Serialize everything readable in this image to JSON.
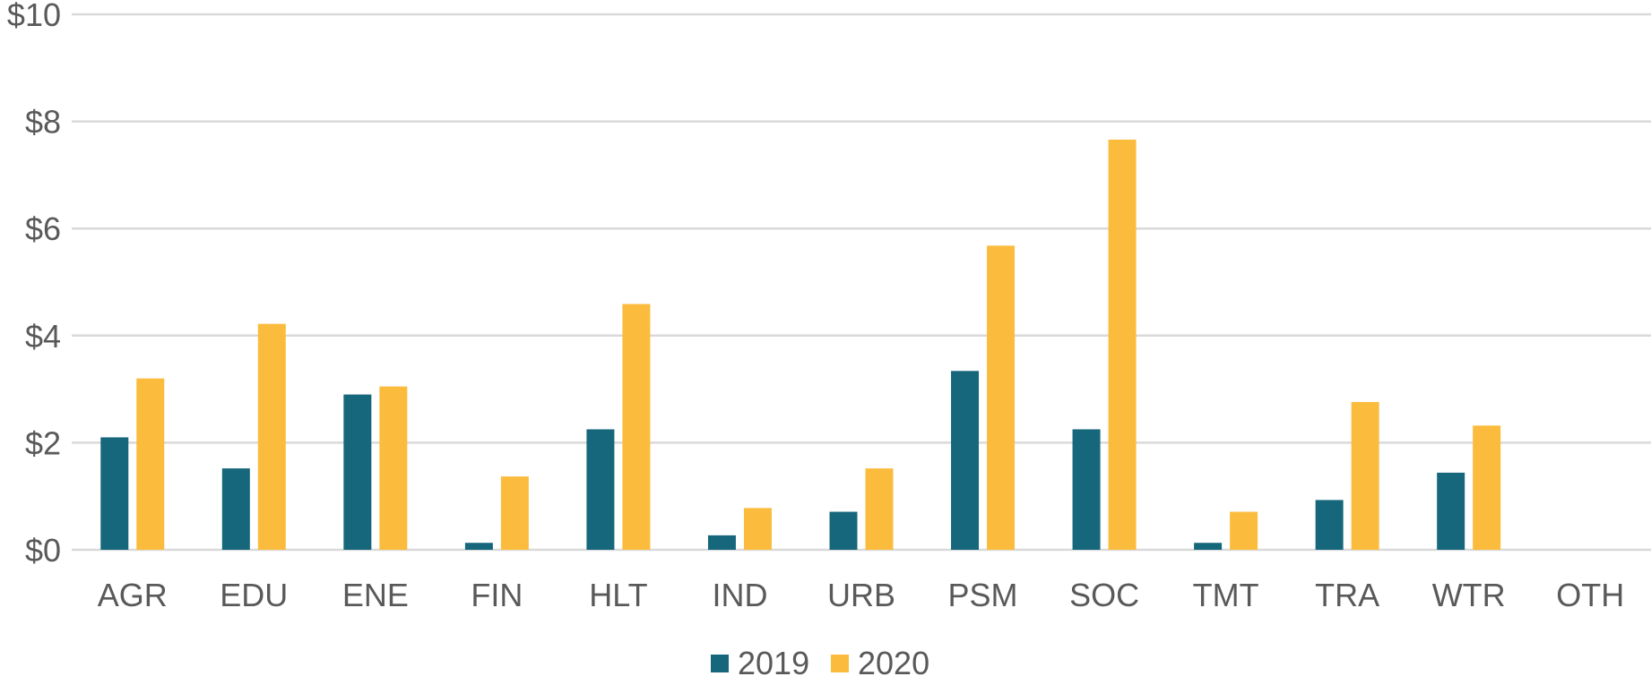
{
  "chart_data": {
    "type": "bar",
    "title": "",
    "xlabel": "",
    "ylabel": "",
    "ylim": [
      0,
      10
    ],
    "yticks": [
      {
        "value": 0,
        "label": "$0"
      },
      {
        "value": 2,
        "label": "$2"
      },
      {
        "value": 4,
        "label": "$4"
      },
      {
        "value": 6,
        "label": "$6"
      },
      {
        "value": 8,
        "label": "$8"
      },
      {
        "value": 10,
        "label": "$10"
      }
    ],
    "grid": true,
    "legend_position": "bottom",
    "categories": [
      "AGR",
      "EDU",
      "ENE",
      "FIN",
      "HLT",
      "IND",
      "URB",
      "PSM",
      "SOC",
      "TMT",
      "TRA",
      "WTR",
      "OTH"
    ],
    "series": [
      {
        "name": "2019",
        "color": "#17677C",
        "values": [
          2.1,
          1.52,
          2.9,
          0.13,
          2.25,
          0.27,
          0.71,
          3.34,
          2.25,
          0.13,
          0.93,
          1.44,
          0
        ]
      },
      {
        "name": "2020",
        "color": "#FBBC3E",
        "values": [
          3.2,
          4.22,
          3.05,
          1.37,
          4.59,
          0.78,
          1.52,
          5.68,
          7.66,
          0.71,
          2.76,
          2.32,
          0
        ]
      }
    ]
  }
}
